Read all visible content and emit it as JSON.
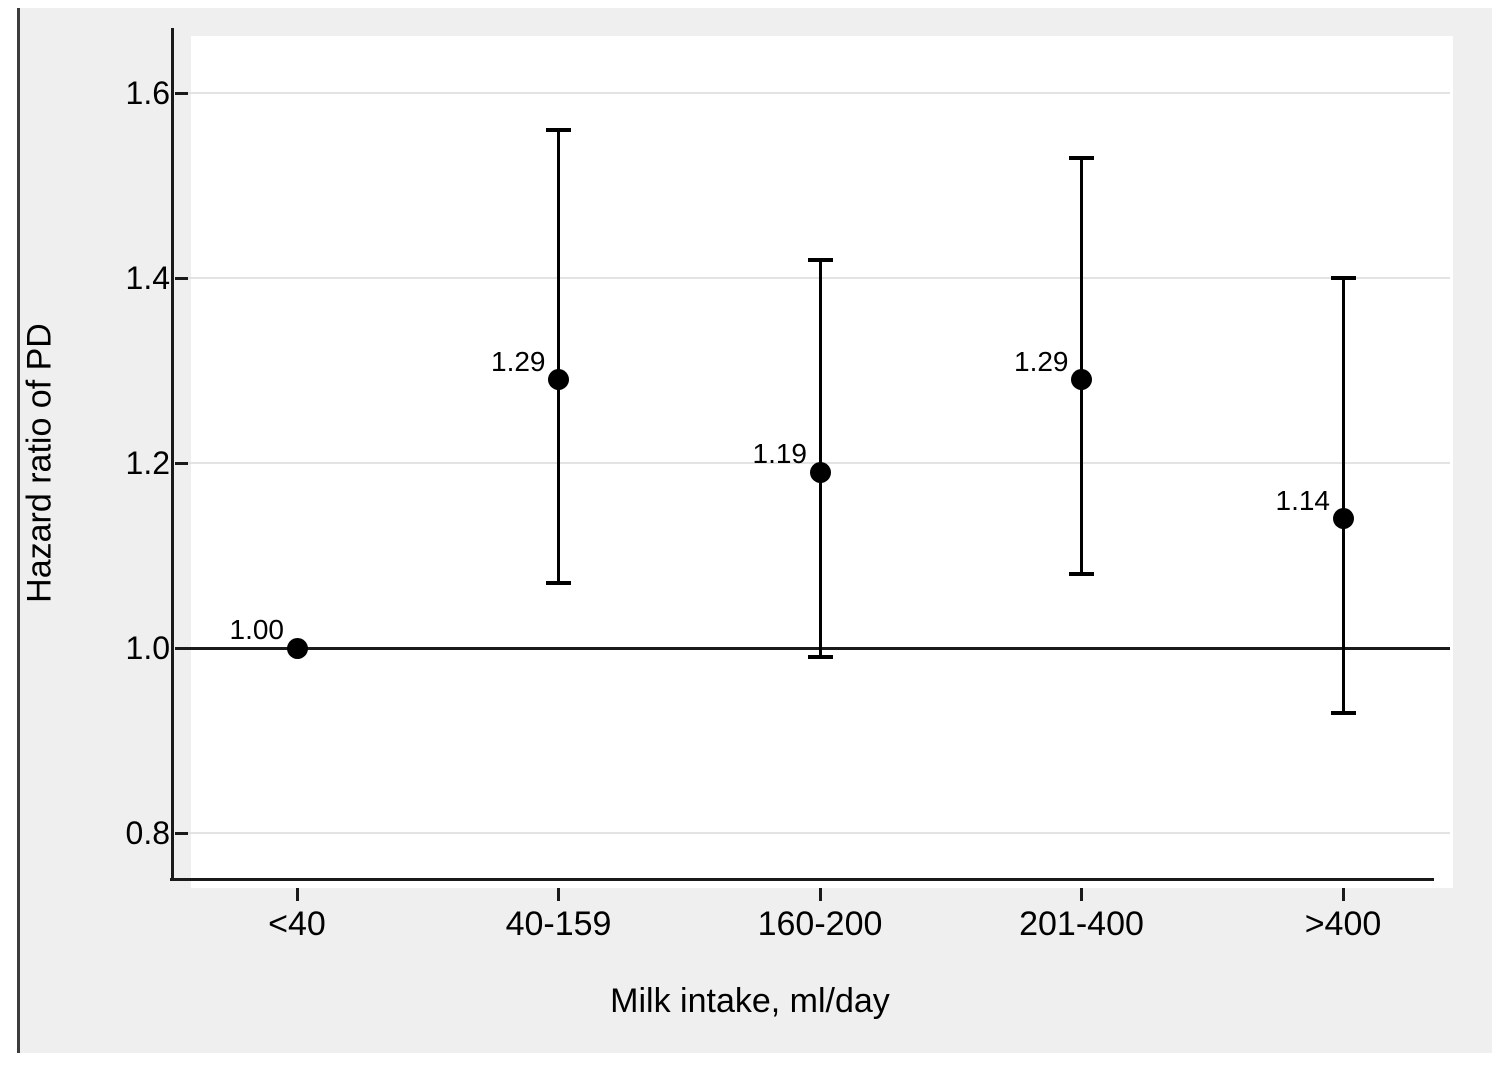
{
  "chart_data": {
    "type": "scatter",
    "subtype": "point-estimates-with-error-bars",
    "title": "",
    "xlabel": "Milk intake, ml/day",
    "ylabel": "Hazard ratio of PD",
    "categories": [
      "<40",
      "40-159",
      "160-200",
      "201-400",
      ">400"
    ],
    "points": [
      {
        "category": "<40",
        "hr": 1.0,
        "label": "1.00",
        "ci_low": null,
        "ci_high": null
      },
      {
        "category": "40-159",
        "hr": 1.29,
        "label": "1.29",
        "ci_low": 1.07,
        "ci_high": 1.56
      },
      {
        "category": "160-200",
        "hr": 1.19,
        "label": "1.19",
        "ci_low": 0.99,
        "ci_high": 1.42
      },
      {
        "category": "201-400",
        "hr": 1.29,
        "label": "1.29",
        "ci_low": 1.08,
        "ci_high": 1.53
      },
      {
        "category": ">400",
        "hr": 1.14,
        "label": "1.14",
        "ci_low": 0.93,
        "ci_high": 1.4
      }
    ],
    "yticks": [
      {
        "value": 0.8,
        "label": "0.8"
      },
      {
        "value": 1.0,
        "label": "1.0"
      },
      {
        "value": 1.2,
        "label": "1.2"
      },
      {
        "value": 1.4,
        "label": "1.4"
      },
      {
        "value": 1.6,
        "label": "1.6"
      }
    ],
    "ylim": [
      0.74,
      1.66
    ],
    "reference_line": 1.0,
    "grid": true,
    "legend": "none",
    "colors": {
      "panel_background": "#efefef",
      "plot_background": "#ffffff",
      "gridline": "#e3e3e3",
      "axis": "#1a1a1a",
      "marker": "#000000",
      "text": "#000000"
    }
  }
}
